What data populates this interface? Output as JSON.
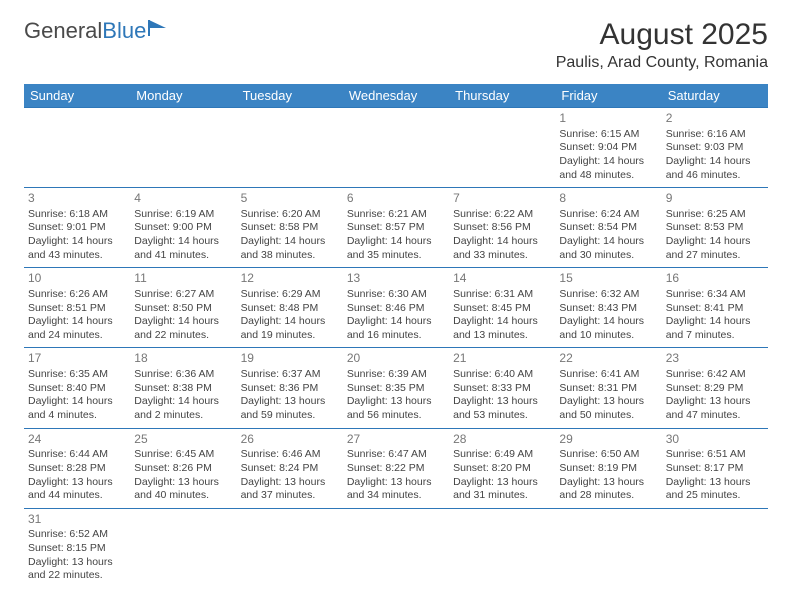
{
  "logo": {
    "text1": "General",
    "text2": "Blue",
    "icon_color": "#2e77b8"
  },
  "title": "August 2025",
  "location": "Paulis, Arad County, Romania",
  "header_bg": "#3b84c4",
  "border_color": "#2e77b8",
  "day_headers": [
    "Sunday",
    "Monday",
    "Tuesday",
    "Wednesday",
    "Thursday",
    "Friday",
    "Saturday"
  ],
  "weeks": [
    [
      null,
      null,
      null,
      null,
      null,
      {
        "n": "1",
        "sr": "6:15 AM",
        "ss": "9:04 PM",
        "dl": "14 hours and 48 minutes."
      },
      {
        "n": "2",
        "sr": "6:16 AM",
        "ss": "9:03 PM",
        "dl": "14 hours and 46 minutes."
      }
    ],
    [
      {
        "n": "3",
        "sr": "6:18 AM",
        "ss": "9:01 PM",
        "dl": "14 hours and 43 minutes."
      },
      {
        "n": "4",
        "sr": "6:19 AM",
        "ss": "9:00 PM",
        "dl": "14 hours and 41 minutes."
      },
      {
        "n": "5",
        "sr": "6:20 AM",
        "ss": "8:58 PM",
        "dl": "14 hours and 38 minutes."
      },
      {
        "n": "6",
        "sr": "6:21 AM",
        "ss": "8:57 PM",
        "dl": "14 hours and 35 minutes."
      },
      {
        "n": "7",
        "sr": "6:22 AM",
        "ss": "8:56 PM",
        "dl": "14 hours and 33 minutes."
      },
      {
        "n": "8",
        "sr": "6:24 AM",
        "ss": "8:54 PM",
        "dl": "14 hours and 30 minutes."
      },
      {
        "n": "9",
        "sr": "6:25 AM",
        "ss": "8:53 PM",
        "dl": "14 hours and 27 minutes."
      }
    ],
    [
      {
        "n": "10",
        "sr": "6:26 AM",
        "ss": "8:51 PM",
        "dl": "14 hours and 24 minutes."
      },
      {
        "n": "11",
        "sr": "6:27 AM",
        "ss": "8:50 PM",
        "dl": "14 hours and 22 minutes."
      },
      {
        "n": "12",
        "sr": "6:29 AM",
        "ss": "8:48 PM",
        "dl": "14 hours and 19 minutes."
      },
      {
        "n": "13",
        "sr": "6:30 AM",
        "ss": "8:46 PM",
        "dl": "14 hours and 16 minutes."
      },
      {
        "n": "14",
        "sr": "6:31 AM",
        "ss": "8:45 PM",
        "dl": "14 hours and 13 minutes."
      },
      {
        "n": "15",
        "sr": "6:32 AM",
        "ss": "8:43 PM",
        "dl": "14 hours and 10 minutes."
      },
      {
        "n": "16",
        "sr": "6:34 AM",
        "ss": "8:41 PM",
        "dl": "14 hours and 7 minutes."
      }
    ],
    [
      {
        "n": "17",
        "sr": "6:35 AM",
        "ss": "8:40 PM",
        "dl": "14 hours and 4 minutes."
      },
      {
        "n": "18",
        "sr": "6:36 AM",
        "ss": "8:38 PM",
        "dl": "14 hours and 2 minutes."
      },
      {
        "n": "19",
        "sr": "6:37 AM",
        "ss": "8:36 PM",
        "dl": "13 hours and 59 minutes."
      },
      {
        "n": "20",
        "sr": "6:39 AM",
        "ss": "8:35 PM",
        "dl": "13 hours and 56 minutes."
      },
      {
        "n": "21",
        "sr": "6:40 AM",
        "ss": "8:33 PM",
        "dl": "13 hours and 53 minutes."
      },
      {
        "n": "22",
        "sr": "6:41 AM",
        "ss": "8:31 PM",
        "dl": "13 hours and 50 minutes."
      },
      {
        "n": "23",
        "sr": "6:42 AM",
        "ss": "8:29 PM",
        "dl": "13 hours and 47 minutes."
      }
    ],
    [
      {
        "n": "24",
        "sr": "6:44 AM",
        "ss": "8:28 PM",
        "dl": "13 hours and 44 minutes."
      },
      {
        "n": "25",
        "sr": "6:45 AM",
        "ss": "8:26 PM",
        "dl": "13 hours and 40 minutes."
      },
      {
        "n": "26",
        "sr": "6:46 AM",
        "ss": "8:24 PM",
        "dl": "13 hours and 37 minutes."
      },
      {
        "n": "27",
        "sr": "6:47 AM",
        "ss": "8:22 PM",
        "dl": "13 hours and 34 minutes."
      },
      {
        "n": "28",
        "sr": "6:49 AM",
        "ss": "8:20 PM",
        "dl": "13 hours and 31 minutes."
      },
      {
        "n": "29",
        "sr": "6:50 AM",
        "ss": "8:19 PM",
        "dl": "13 hours and 28 minutes."
      },
      {
        "n": "30",
        "sr": "6:51 AM",
        "ss": "8:17 PM",
        "dl": "13 hours and 25 minutes."
      }
    ],
    [
      {
        "n": "31",
        "sr": "6:52 AM",
        "ss": "8:15 PM",
        "dl": "13 hours and 22 minutes."
      },
      null,
      null,
      null,
      null,
      null,
      null
    ]
  ],
  "labels": {
    "sunrise": "Sunrise: ",
    "sunset": "Sunset: ",
    "daylight": "Daylight: "
  }
}
